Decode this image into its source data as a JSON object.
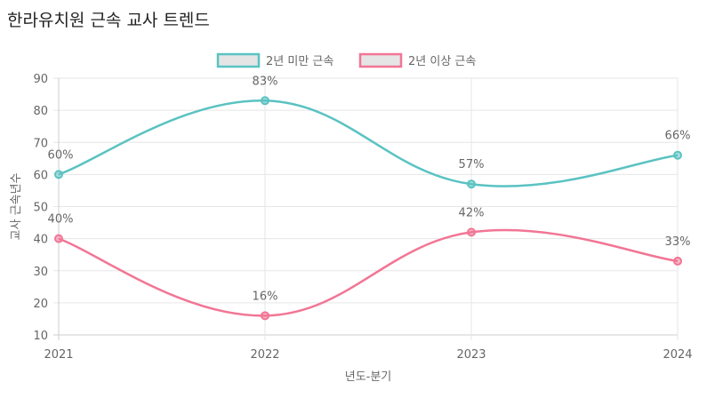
{
  "page": {
    "title": "한라유치원 근속 교사 트렌드"
  },
  "colors": {
    "series_teal": "#5bc2c2",
    "series_pink": "#f27595",
    "grid": "#e6e6e6",
    "axis": "#cccccc"
  },
  "chart_data": {
    "type": "line",
    "title": "한라유치원 근속 교사 트렌드",
    "xlabel": "년도-분기",
    "ylabel": "교사 근속년수",
    "categories": [
      "2021",
      "2022",
      "2023",
      "2024"
    ],
    "ylim": [
      10,
      90
    ],
    "yticks": [
      10,
      20,
      30,
      40,
      50,
      60,
      70,
      80,
      90
    ],
    "grid": true,
    "legend_position": "top-center",
    "series": [
      {
        "name": "2년 미만 근속",
        "values": [
          60,
          83,
          57,
          66
        ],
        "labels": [
          "60%",
          "83%",
          "57%",
          "66%"
        ],
        "color": "#5bc2c2"
      },
      {
        "name": "2년 이상 근속",
        "values": [
          40,
          16,
          42,
          33
        ],
        "labels": [
          "40%",
          "16%",
          "42%",
          "33%"
        ],
        "color": "#f27595"
      }
    ]
  }
}
